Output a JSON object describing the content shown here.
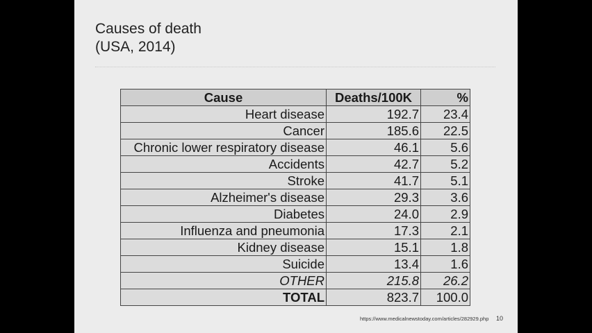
{
  "slide": {
    "title_line1": "Causes of death",
    "title_line2": "(USA, 2014)",
    "source_url": "https://www.medicalnewstoday.com/articles/282929.php",
    "page_number": "10"
  },
  "table": {
    "headers": [
      "Cause",
      "Deaths/100K",
      "%"
    ],
    "rows": [
      {
        "cause": "Heart disease",
        "deaths": "192.7",
        "pct": "23.4"
      },
      {
        "cause": "Cancer",
        "deaths": "185.6",
        "pct": "22.5"
      },
      {
        "cause": "Chronic lower respiratory disease",
        "deaths": "46.1",
        "pct": "5.6"
      },
      {
        "cause": "Accidents",
        "deaths": "42.7",
        "pct": "5.2"
      },
      {
        "cause": "Stroke",
        "deaths": "41.7",
        "pct": "5.1"
      },
      {
        "cause": "Alzheimer's disease",
        "deaths": "29.3",
        "pct": "3.6"
      },
      {
        "cause": "Diabetes",
        "deaths": "24.0",
        "pct": "2.9"
      },
      {
        "cause": "Influenza and pneumonia",
        "deaths": "17.3",
        "pct": "2.1"
      },
      {
        "cause": "Kidney disease",
        "deaths": "15.1",
        "pct": "1.8"
      },
      {
        "cause": "Suicide",
        "deaths": "13.4",
        "pct": "1.6"
      },
      {
        "cause": "OTHER",
        "deaths": "215.8",
        "pct": "26.2"
      },
      {
        "cause": "TOTAL",
        "deaths": "823.7",
        "pct": "100.0"
      }
    ]
  }
}
